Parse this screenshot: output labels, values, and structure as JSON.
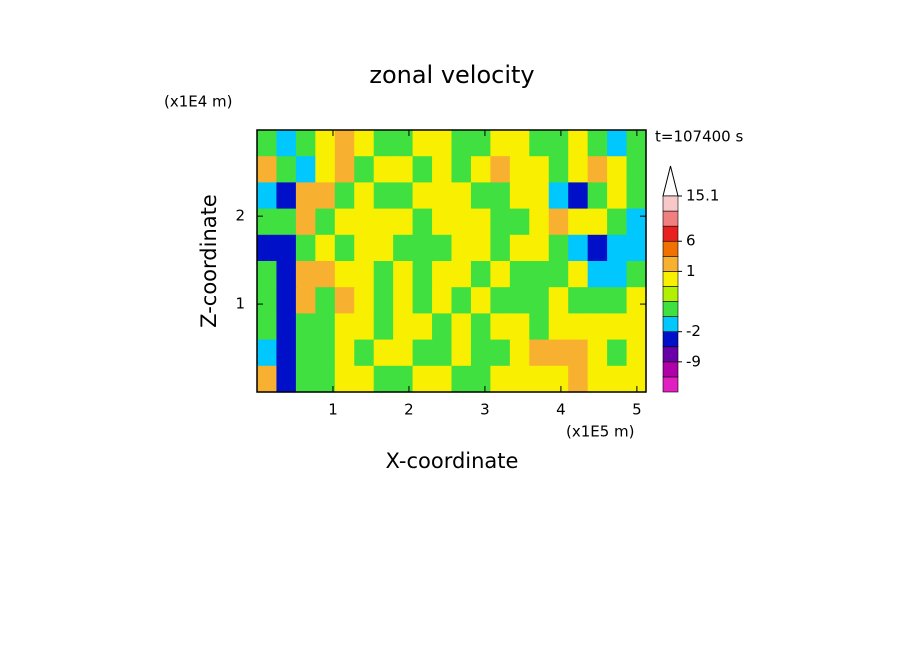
{
  "chart_data": {
    "type": "contour",
    "title": "zonal velocity",
    "xlabel": "X-coordinate",
    "ylabel": "Z-coordinate",
    "x_unit": "(x1E5 m)",
    "y_unit": "(x1E4 m)",
    "annotation": "t=107400 s",
    "xlim": [
      0,
      5.12
    ],
    "ylim": [
      0,
      2.98
    ],
    "xticks": [
      1,
      2,
      3,
      4,
      5
    ],
    "yticks": [
      1,
      2
    ],
    "z": [
      [
        -0.5,
        -1.5,
        -0.5,
        0.7,
        2,
        0.7,
        -0.5,
        -0.5,
        0.7,
        0.7,
        -0.5,
        -0.5,
        0.7,
        0.7,
        -0.5,
        -0.5,
        0.7,
        -0.5,
        -1.5,
        -0.5
      ],
      [
        2,
        -0.5,
        -1.5,
        0.7,
        2,
        -0.5,
        0.7,
        0.7,
        -0.5,
        0.7,
        -0.5,
        0.7,
        2,
        0.7,
        0.7,
        -0.5,
        0.7,
        2,
        0.7,
        -0.5
      ],
      [
        -1.5,
        -4,
        2,
        2,
        -0.5,
        0.7,
        -0.5,
        -0.5,
        0.7,
        0.7,
        0.7,
        -0.5,
        -0.5,
        0.7,
        0.7,
        -1.5,
        -4,
        -0.5,
        0.7,
        -0.5
      ],
      [
        -0.5,
        -0.5,
        2,
        -0.5,
        0.7,
        0.7,
        0.7,
        0.7,
        -0.5,
        0.7,
        0.7,
        0.7,
        -0.5,
        -0.5,
        0.7,
        2,
        0.7,
        0.7,
        -0.5,
        -1.5
      ],
      [
        -4,
        -4,
        -0.5,
        0.7,
        -0.5,
        0.7,
        0.7,
        -0.5,
        -0.5,
        -0.5,
        0.7,
        0.7,
        -0.5,
        0.7,
        0.7,
        -0.5,
        -1.5,
        -4,
        -1.5,
        -1.5
      ],
      [
        -0.5,
        -4,
        2,
        2,
        0.7,
        0.7,
        -0.5,
        0.7,
        -0.5,
        0.7,
        0.7,
        -0.5,
        0.7,
        -0.5,
        -0.5,
        -0.5,
        0.7,
        -1.5,
        -1.5,
        -0.5
      ],
      [
        -0.5,
        -4,
        2,
        -0.5,
        2,
        0.7,
        -0.5,
        0.7,
        -0.5,
        0.7,
        -0.5,
        0.7,
        -0.5,
        -0.5,
        -0.5,
        0.7,
        -0.5,
        -0.5,
        -0.5,
        0.7
      ],
      [
        -0.5,
        -4,
        -0.5,
        -0.5,
        0.7,
        0.7,
        -0.5,
        0.7,
        0.7,
        -0.5,
        0.7,
        -0.5,
        0.7,
        0.7,
        -0.5,
        0.7,
        0.7,
        0.7,
        0.7,
        0.7
      ],
      [
        -1.5,
        -4,
        -0.5,
        -0.5,
        0.7,
        -0.5,
        0.7,
        0.7,
        -0.5,
        -0.5,
        0.7,
        -0.5,
        -0.5,
        0.7,
        2,
        2,
        2,
        0.7,
        -0.5,
        0.7
      ],
      [
        2,
        -4,
        -0.5,
        -0.5,
        0.7,
        0.7,
        -0.5,
        -0.5,
        0.7,
        0.7,
        -0.5,
        -0.5,
        0.7,
        0.7,
        0.7,
        0.7,
        2,
        0.7,
        0.7,
        0.7
      ]
    ],
    "levels": [
      -15,
      -12,
      -9,
      -6,
      -2,
      -1,
      0,
      0.5,
      1,
      3,
      6,
      9,
      12,
      15.1
    ],
    "colors": [
      "#e020c0",
      "#b000a8",
      "#6a00a8",
      "#0010c8",
      "#00c8ff",
      "#40e040",
      "#b0f000",
      "#f8f000",
      "#f8b030",
      "#f07000",
      "#e82020",
      "#f08080",
      "#f8c8c8"
    ],
    "colorbar_ticks": [
      -9,
      -2,
      1,
      6,
      15.1
    ]
  }
}
